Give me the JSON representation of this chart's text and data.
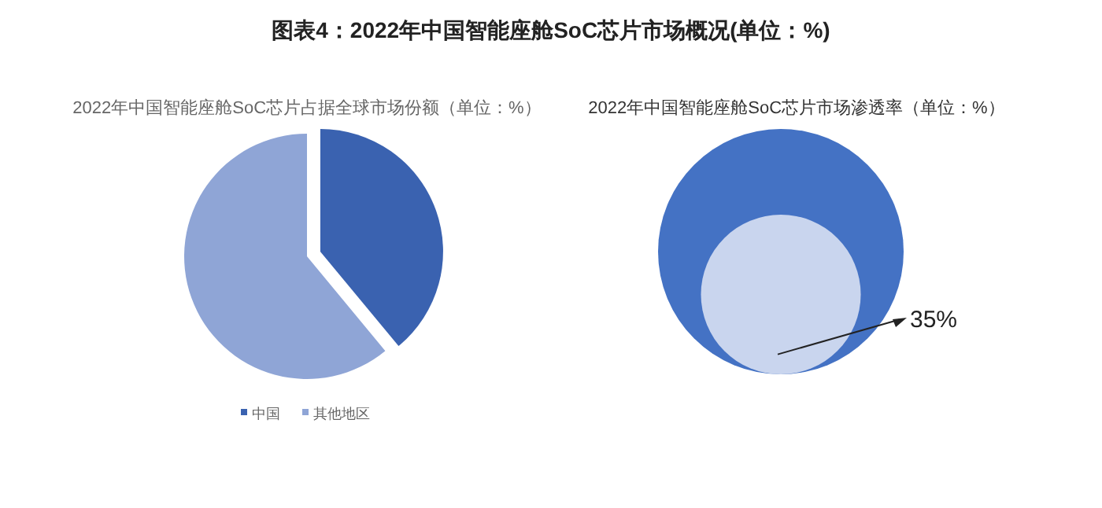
{
  "chart_data": [
    {
      "type": "pie",
      "title": "图表4：2022年中国智能座舱SoC芯片市场概况(单位：%)",
      "subtitle": "2022年中国智能座舱SoC芯片占据全球市场份额（单位：%）",
      "categories": [
        "中国",
        "其他地区"
      ],
      "values": [
        39,
        61
      ],
      "colors": [
        "#3a62b0",
        "#8fa5d6"
      ],
      "legend": "bottom"
    },
    {
      "type": "other",
      "title": "2022年中国智能座舱SoC芯片市场渗透率（单位：%）",
      "values": [
        35
      ],
      "value_labels": [
        "35%"
      ],
      "color": "#4472c4",
      "colors": [
        "#c9d5ee"
      ]
    }
  ]
}
